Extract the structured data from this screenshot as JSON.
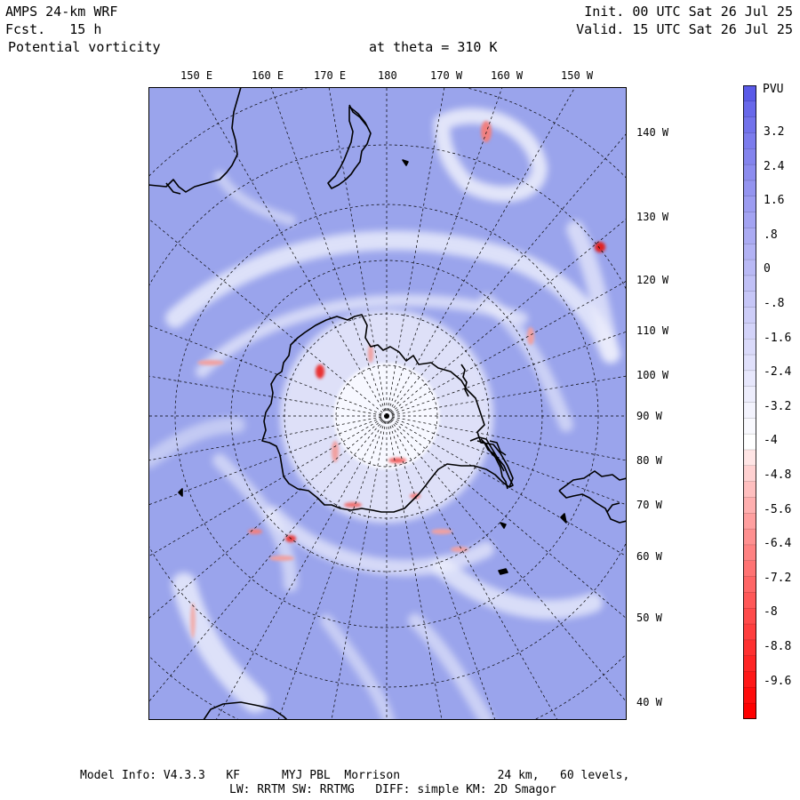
{
  "header": {
    "model": "AMPS 24-km WRF",
    "forecast": "Fcst.   15 h",
    "field": "Potential vorticity",
    "level": "at theta = 310 K",
    "init": "Init. 00 UTC Sat 26 Jul 25",
    "valid": "Valid. 15 UTC Sat 26 Jul 25"
  },
  "map": {
    "top_longitude_labels": [
      "150 E",
      "160 E",
      "170 E",
      "180",
      "170 W",
      "160 W",
      "150 W"
    ],
    "right_longitude_labels": [
      "140 W",
      "130 W",
      "120 W",
      "110 W",
      "100 W",
      "90 W",
      "80 W",
      "70 W",
      "60 W",
      "50 W",
      "40 W"
    ],
    "projection": "polar-stereographic-south",
    "background_color": "#9aa4ec"
  },
  "colorbar": {
    "unit": "PVU",
    "tick_labels": [
      "3.2",
      "2.4",
      "1.6",
      ".8",
      "0",
      "-.8",
      "-1.6",
      "-2.4",
      "-3.2",
      "-4",
      "-4.8",
      "-5.6",
      "-6.4",
      "-7.2",
      "-8",
      "-8.8",
      "-9.6"
    ],
    "top_color": "#5a5ae8",
    "mid_color": "#ffffff",
    "bottom_color": "#ff0000"
  },
  "footer": {
    "line1": "Model Info: V4.3.3   KF      MYJ PBL  Morrison              24 km,   60 levels,",
    "line2": "LW: RRTM SW: RRTMG   DIFF: simple KM: 2D Smagor"
  }
}
